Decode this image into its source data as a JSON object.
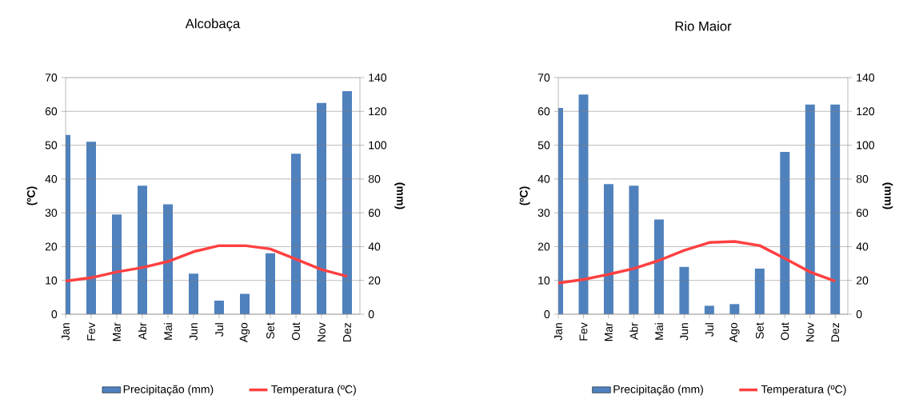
{
  "chart_data": [
    {
      "type": "bar",
      "title": "Alcobaça",
      "ylabel": "(ºC)",
      "y2label": "(mm)",
      "categories": [
        "Jan",
        "Fev",
        "Mar",
        "Abr",
        "Mai",
        "Jun",
        "Jul",
        "Ago",
        "Set",
        "Out",
        "Nov",
        "Dez"
      ],
      "series": [
        {
          "name": "Precipitação (mm)",
          "axis": "y2",
          "color": "#4f81bd",
          "values": [
            106,
            102,
            59,
            76,
            65,
            24,
            8,
            12,
            36,
            95,
            125,
            132
          ]
        },
        {
          "name": "Temperatura (ºC)",
          "type": "line",
          "color": "#ff4040",
          "values": [
            9.8,
            10.8,
            12.5,
            13.8,
            15.6,
            18.5,
            20.3,
            20.3,
            19.3,
            16.3,
            13.2,
            11.2
          ]
        }
      ],
      "ylim": [
        0,
        70
      ],
      "yticks": [
        0,
        10,
        20,
        30,
        40,
        50,
        60,
        70
      ],
      "y2lim": [
        0,
        140
      ],
      "y2ticks": [
        0,
        20,
        40,
        60,
        80,
        100,
        120,
        140
      ],
      "grid": "y",
      "legend": "bottom"
    },
    {
      "type": "bar",
      "title": "Rio Maior",
      "ylabel": "(ºC)",
      "y2label": "(mm)",
      "categories": [
        "Jan",
        "Fev",
        "Mar",
        "Abr",
        "Mai",
        "Jun",
        "Jul",
        "Ago",
        "Set",
        "Out",
        "Nov",
        "Dez"
      ],
      "series": [
        {
          "name": "Precipitação (mm)",
          "axis": "y2",
          "color": "#4f81bd",
          "values": [
            122,
            130,
            77,
            76,
            56,
            28,
            5,
            6,
            27,
            96,
            124,
            124
          ]
        },
        {
          "name": "Temperatura (ºC)",
          "type": "line",
          "color": "#ff4040",
          "values": [
            9.2,
            10.3,
            11.8,
            13.5,
            15.9,
            18.9,
            21.2,
            21.5,
            20.3,
            16.5,
            12.5,
            9.8
          ]
        }
      ],
      "ylim": [
        0,
        70
      ],
      "yticks": [
        0,
        10,
        20,
        30,
        40,
        50,
        60,
        70
      ],
      "y2lim": [
        0,
        140
      ],
      "y2ticks": [
        0,
        20,
        40,
        60,
        80,
        100,
        120,
        140
      ],
      "grid": "y",
      "legend": "bottom"
    }
  ]
}
